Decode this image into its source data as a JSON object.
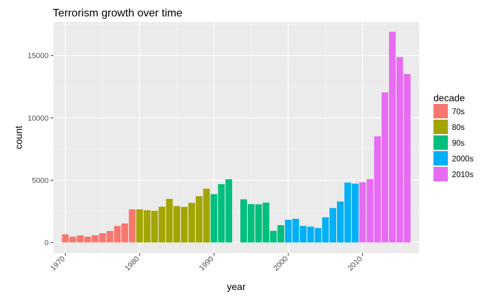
{
  "chart_data": {
    "type": "bar",
    "title": "Terrorism growth over time",
    "xlabel": "year",
    "ylabel": "count",
    "xlim": [
      1968.4,
      2017.6
    ],
    "ylim": [
      -850,
      17700
    ],
    "x_ticks": [
      1970,
      1980,
      1990,
      2000,
      2010
    ],
    "y_ticks": [
      0,
      5000,
      10000,
      15000
    ],
    "y_tick_labels": [
      "0",
      "5000",
      "10000",
      "15000"
    ],
    "grid": true,
    "legend": {
      "title": "decade",
      "position": "right",
      "entries": [
        {
          "label": "70s",
          "color": "#F8766D"
        },
        {
          "label": "80s",
          "color": "#A3A500"
        },
        {
          "label": "90s",
          "color": "#00BF7D"
        },
        {
          "label": "2000s",
          "color": "#00B0F6"
        },
        {
          "label": "2010s",
          "color": "#E76BF3"
        }
      ]
    },
    "series": [
      {
        "name": "70s",
        "color": "#F8766D",
        "x": [
          1970,
          1971,
          1972,
          1973,
          1974,
          1975,
          1976,
          1977,
          1978,
          1979
        ],
        "values": [
          650,
          470,
          570,
          470,
          580,
          740,
          920,
          1320,
          1530,
          2660
        ]
      },
      {
        "name": "80s",
        "color": "#A3A500",
        "x": [
          1980,
          1981,
          1982,
          1983,
          1984,
          1985,
          1986,
          1987,
          1988,
          1989
        ],
        "values": [
          2660,
          2590,
          2540,
          2870,
          3500,
          2920,
          2860,
          3180,
          3720,
          4320
        ]
      },
      {
        "name": "90s",
        "color": "#00BF7D",
        "x": [
          1990,
          1991,
          1992,
          1994,
          1995,
          1996,
          1997,
          1998,
          1999
        ],
        "values": [
          3880,
          4680,
          5070,
          3460,
          3080,
          3060,
          3200,
          930,
          1390
        ]
      },
      {
        "name": "2000s",
        "color": "#00B0F6",
        "x": [
          2000,
          2001,
          2002,
          2003,
          2004,
          2005,
          2006,
          2007,
          2008,
          2009
        ],
        "values": [
          1820,
          1900,
          1330,
          1270,
          1160,
          2020,
          2760,
          3290,
          4810,
          4720
        ]
      },
      {
        "name": "2010s",
        "color": "#E76BF3",
        "x": [
          2010,
          2011,
          2012,
          2013,
          2014,
          2015,
          2016
        ],
        "values": [
          4830,
          5080,
          8520,
          12040,
          16900,
          14870,
          13520
        ]
      }
    ]
  }
}
